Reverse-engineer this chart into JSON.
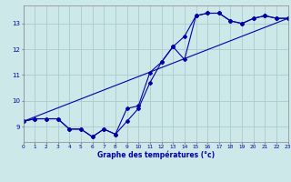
{
  "xlabel": "Graphe des températures (°c)",
  "background_color": "#cce8e8",
  "grid_color": "#aacccc",
  "line_color": "#0000aa",
  "hours": [
    0,
    1,
    2,
    3,
    4,
    5,
    6,
    7,
    8,
    9,
    10,
    11,
    12,
    13,
    14,
    15,
    16,
    17,
    18,
    19,
    20,
    21,
    22,
    23
  ],
  "series1": [
    9.2,
    9.3,
    9.3,
    9.3,
    8.9,
    8.9,
    8.6,
    8.9,
    8.7,
    9.2,
    9.7,
    10.7,
    11.5,
    12.1,
    12.5,
    13.3,
    13.4,
    13.4,
    13.1,
    13.0,
    13.2,
    13.3,
    13.2,
    13.2
  ],
  "series2": [
    9.2,
    9.3,
    9.3,
    9.3,
    8.9,
    8.9,
    8.6,
    8.9,
    8.7,
    9.7,
    9.8,
    11.1,
    11.5,
    12.1,
    11.6,
    13.3,
    13.4,
    13.4,
    13.1,
    13.0,
    13.2,
    13.3,
    13.2,
    13.2
  ],
  "series3_x": [
    0,
    23
  ],
  "series3_y": [
    9.2,
    13.2
  ],
  "ylim": [
    8.4,
    13.7
  ],
  "yticks": [
    9,
    10,
    11,
    12,
    13
  ],
  "xlim": [
    0,
    23
  ]
}
